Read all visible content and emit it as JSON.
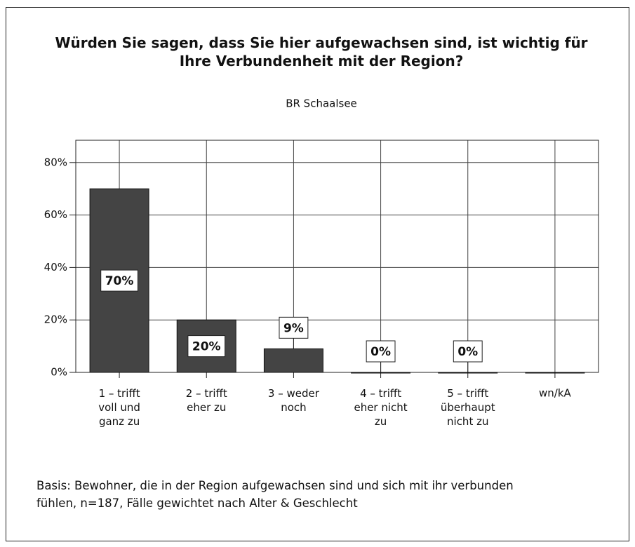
{
  "chart_data": {
    "type": "bar",
    "title": "Würden Sie sagen, dass Sie hier aufgewachsen sind, ist wichtig für\nIhre Verbundenheit mit der Region?",
    "subtitle": "BR Schaalsee",
    "categories": [
      "1 – trifft\nvoll und\nganz zu",
      "2 – trifft\neher zu",
      "3 – weder\nnoch",
      "4 – trifft\neher nicht\nzu",
      "5 – trifft\nüberhaupt\nnicht zu",
      "wn/kA"
    ],
    "values": [
      70,
      20,
      9,
      0,
      0,
      0
    ],
    "value_labels": [
      "70%",
      "20%",
      "9%",
      "0%",
      "0%",
      null
    ],
    "color": "#444444",
    "ylim": [
      0,
      88.5
    ],
    "yticks": [
      {
        "value": 0,
        "label": "0%"
      },
      {
        "value": 20,
        "label": "20%"
      },
      {
        "value": 40,
        "label": "40%"
      },
      {
        "value": 60,
        "label": "60%"
      },
      {
        "value": 80,
        "label": "80%"
      }
    ],
    "grid": true,
    "note": "Basis: Bewohner, die in der Region aufgewachsen sind und sich mit ihr verbunden\nfühlen, n=187, Fälle gewichtet nach Alter & Geschlecht"
  }
}
